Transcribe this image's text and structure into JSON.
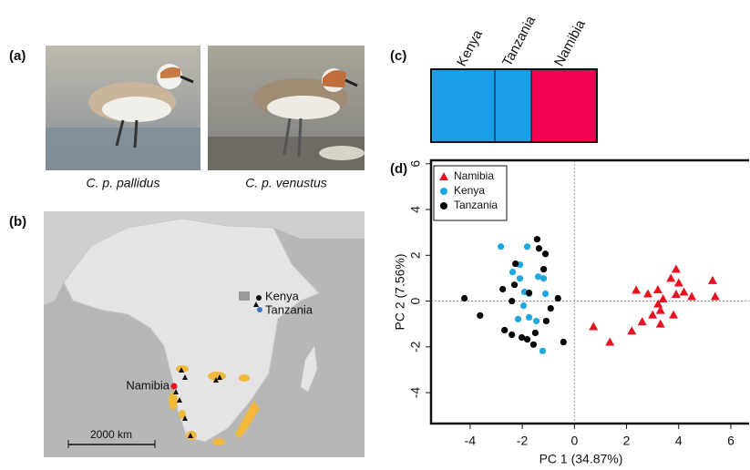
{
  "panels": {
    "a": "(a)",
    "b": "(b)",
    "c": "(c)",
    "d": "(d)"
  },
  "photos": {
    "captions": [
      "C. p. pallidus",
      "C. p. venustus"
    ]
  },
  "map": {
    "labels": [
      "Kenya",
      "Tanzania",
      "Namibia"
    ],
    "scale_bar": "2000 km"
  },
  "structure": {
    "populations": [
      "Kenya",
      "Tanzania",
      "Namibia"
    ]
  },
  "chart_data": {
    "type": "scatter",
    "xlabel": "PC 1 (34.87%)",
    "ylabel": "PC 2 (7.56%)",
    "xlim": [
      -5.5,
      6.7
    ],
    "ylim": [
      -5.35,
      6.15
    ],
    "xticks": [
      -4,
      -2,
      0,
      2,
      4,
      6
    ],
    "yticks": [
      -4,
      -2,
      0,
      2,
      4,
      6
    ],
    "reference_lines": {
      "x": [
        0
      ],
      "y": [
        0
      ]
    },
    "legend": "upper left",
    "series": [
      {
        "name": "Namibia",
        "color": "#e8131f",
        "marker": "triangle",
        "x": [
          0.73,
          1.36,
          2.37,
          2.82,
          3.21,
          2.2,
          2.6,
          3.0,
          3.3,
          3.4,
          3.2,
          3.8,
          3.9,
          4.0,
          3.9,
          4.2,
          4.5,
          3.7,
          5.3,
          5.4,
          3.3
        ],
        "y": [
          -1.11,
          -1.79,
          0.48,
          0.32,
          -0.12,
          -1.3,
          -0.9,
          -0.6,
          -0.4,
          0.1,
          0.5,
          -0.6,
          0.3,
          0.8,
          1.4,
          0.4,
          0.2,
          1.0,
          0.9,
          0.2,
          -1.0
        ]
      },
      {
        "name": "Kenya",
        "color": "#1ea7e1",
        "marker": "circle",
        "x": [
          -2.82,
          -2.37,
          -2.09,
          -1.81,
          -1.92,
          -1.74,
          -1.95,
          -1.74,
          -2.16,
          -1.39,
          -1.18,
          -1.11,
          -1.46,
          -1.22,
          -2.09
        ],
        "y": [
          2.38,
          1.27,
          1.59,
          2.38,
          0.4,
          0.32,
          -0.2,
          -0.71,
          -0.79,
          1.07,
          0.99,
          0.32,
          -0.87,
          -2.18,
          0.99
        ]
      },
      {
        "name": "Tanzania",
        "color": "#000000",
        "marker": "circle",
        "x": [
          -4.22,
          -3.62,
          -1.43,
          -1.36,
          -1.11,
          -1.18,
          -2.26,
          -2.75,
          -2.4,
          -2.3,
          -2.68,
          -2.4,
          -2.02,
          -1.81,
          -1.5,
          -1.08,
          -0.91,
          -0.63,
          -0.42,
          -1.57,
          -1.74
        ],
        "y": [
          0.12,
          -0.63,
          2.7,
          2.3,
          2.06,
          1.39,
          1.63,
          0.52,
          0.0,
          0.71,
          -1.27,
          -1.47,
          -1.59,
          -1.67,
          -1.39,
          -0.87,
          -0.32,
          0.12,
          -1.79,
          -1.9,
          0.36
        ]
      }
    ]
  }
}
